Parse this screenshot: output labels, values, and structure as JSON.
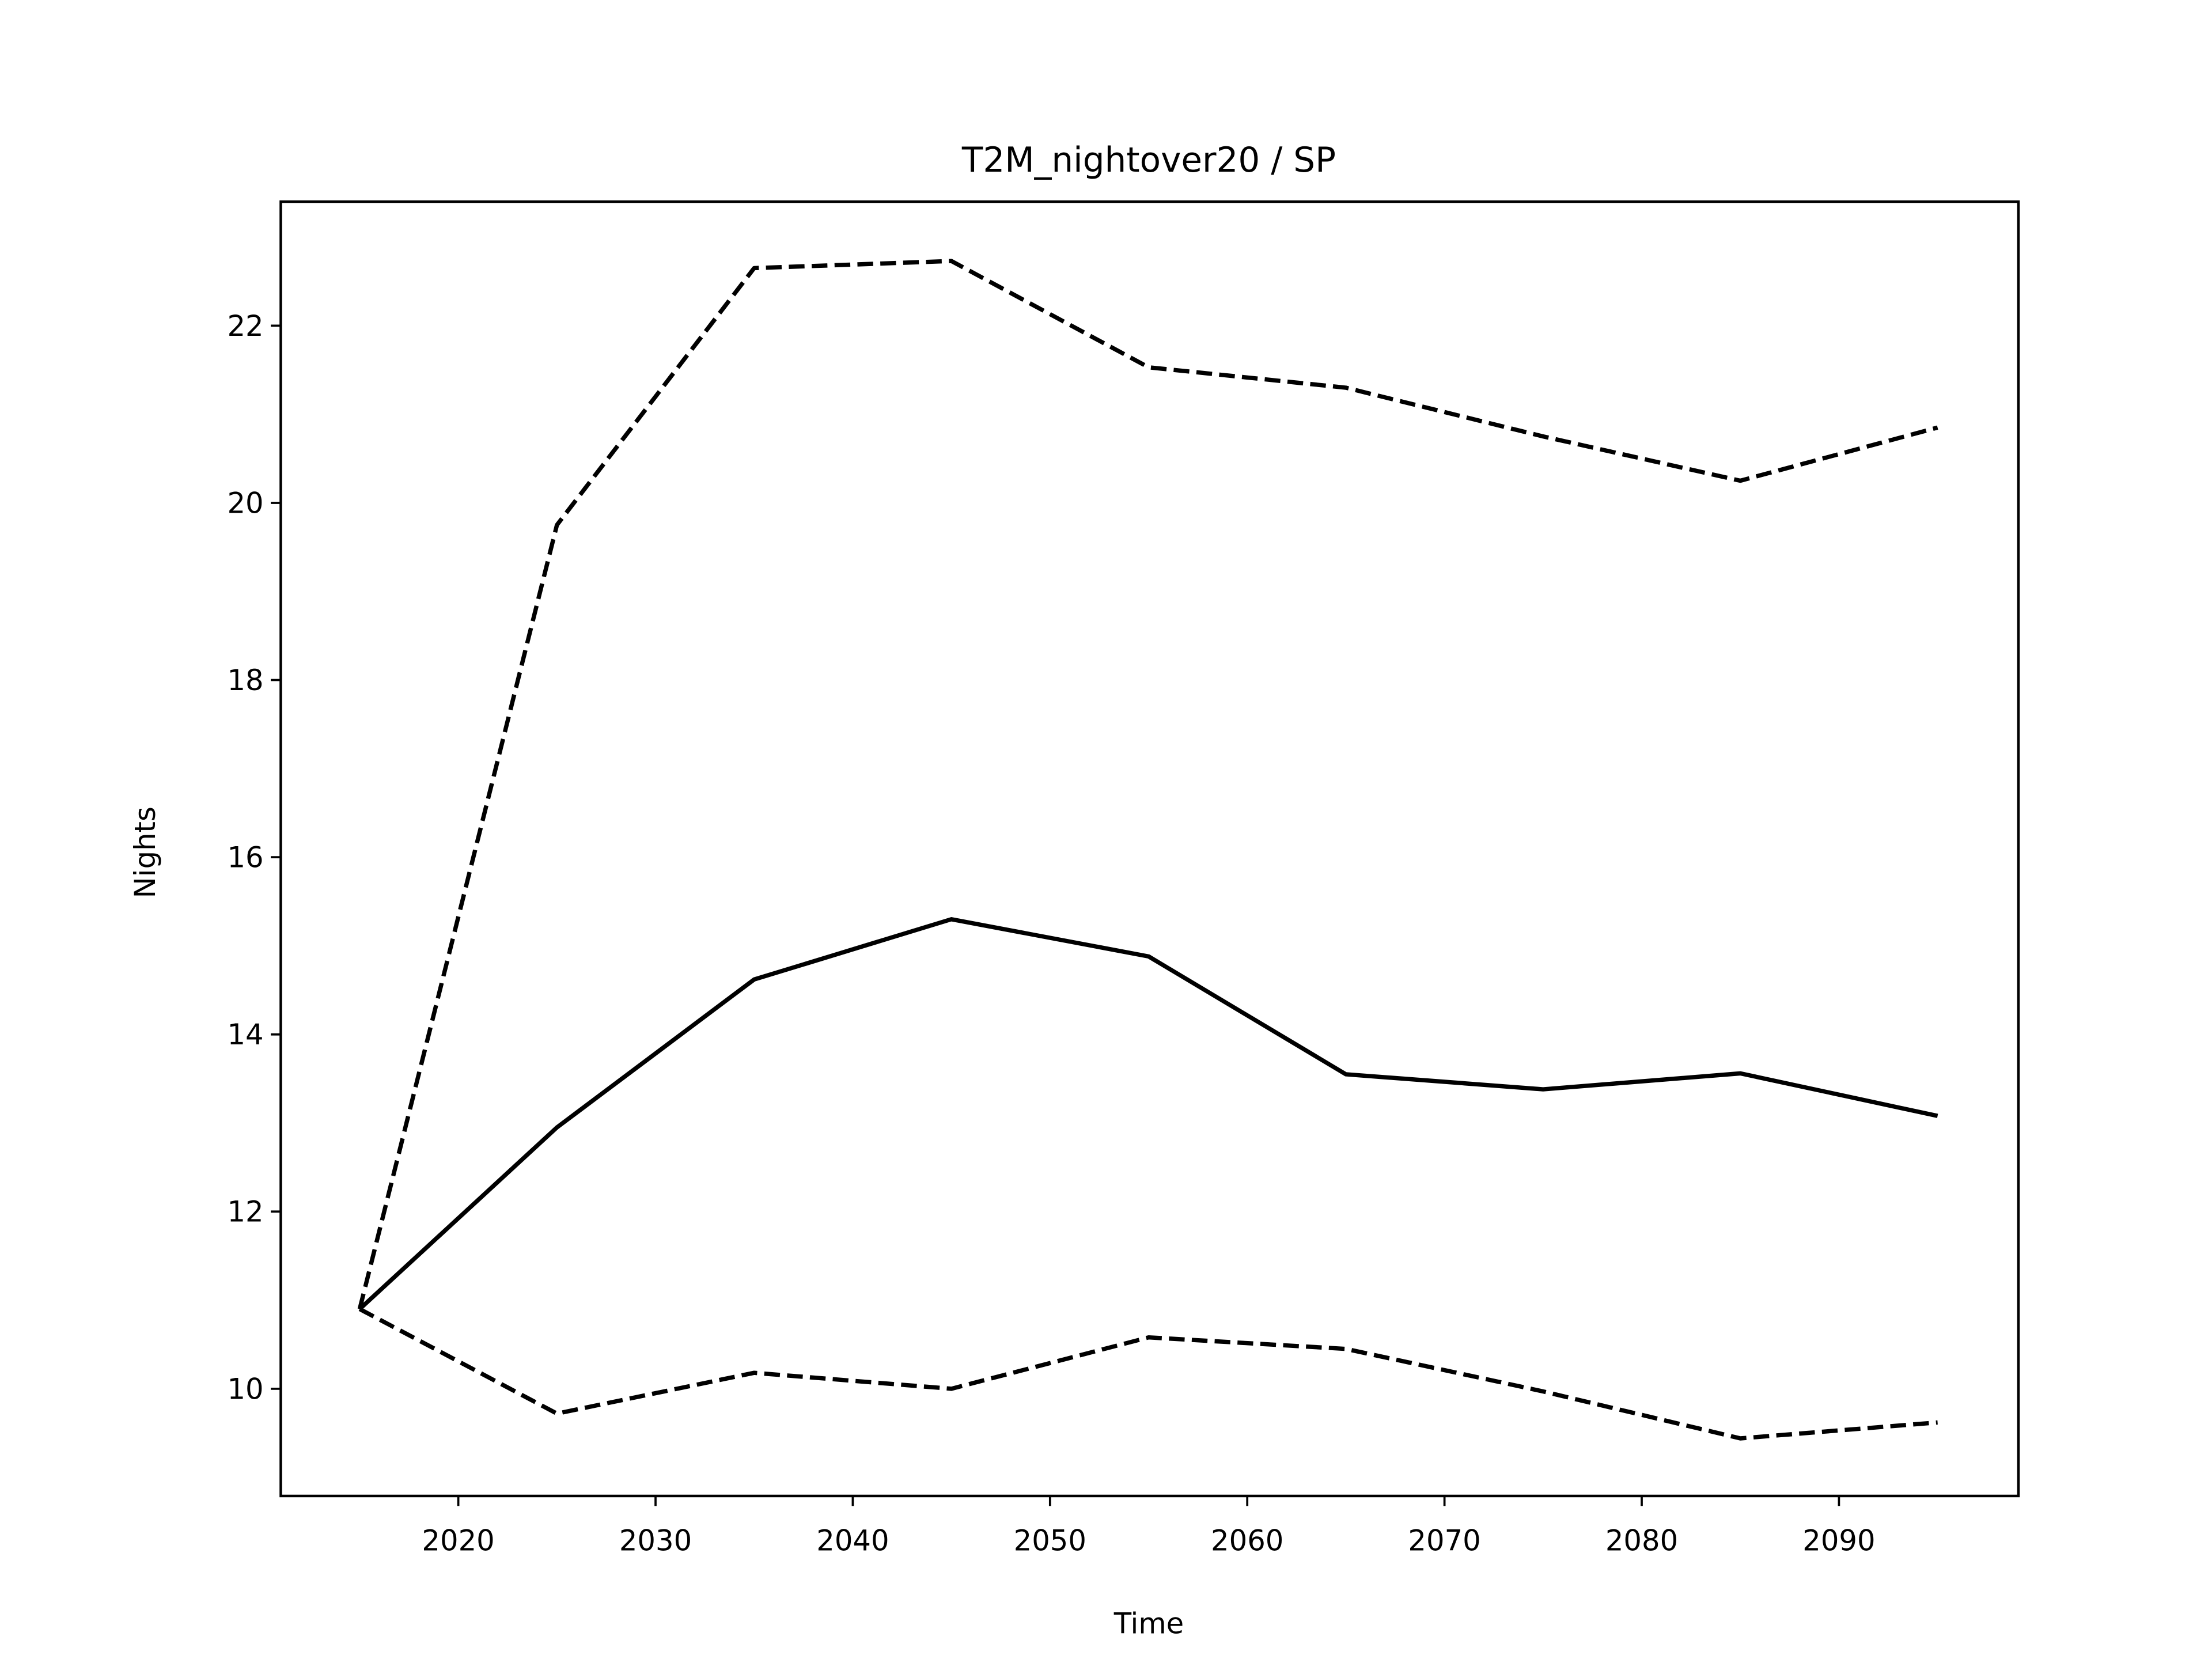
{
  "chart_data": {
    "type": "line",
    "title": "T2M_nightover20 / SP",
    "xlabel": "Time",
    "ylabel": "Nights",
    "x": [
      2015,
      2025,
      2035,
      2045,
      2055,
      2065,
      2075,
      2085,
      2095
    ],
    "series": [
      {
        "color": "#000000",
        "linestyle": "solid",
        "values": [
          10.9,
          12.95,
          14.62,
          15.3,
          14.88,
          13.55,
          13.38,
          13.56,
          13.08
        ]
      },
      {
        "color": "#000000",
        "linestyle": "dashed",
        "values": [
          10.9,
          19.75,
          22.65,
          22.73,
          21.53,
          21.3,
          20.75,
          20.25,
          20.85
        ]
      },
      {
        "color": "#000000",
        "linestyle": "dashed",
        "values": [
          10.9,
          9.72,
          10.18,
          10.0,
          10.58,
          10.45,
          9.97,
          9.44,
          9.62
        ]
      }
    ],
    "xlim": [
      2011.0,
      2099.1
    ],
    "ylim": [
      8.79,
      23.4
    ],
    "xticks": [
      2020,
      2030,
      2040,
      2050,
      2060,
      2070,
      2080,
      2090
    ],
    "yticks": [
      10,
      12,
      14,
      16,
      18,
      20,
      22
    ],
    "grid": false
  }
}
